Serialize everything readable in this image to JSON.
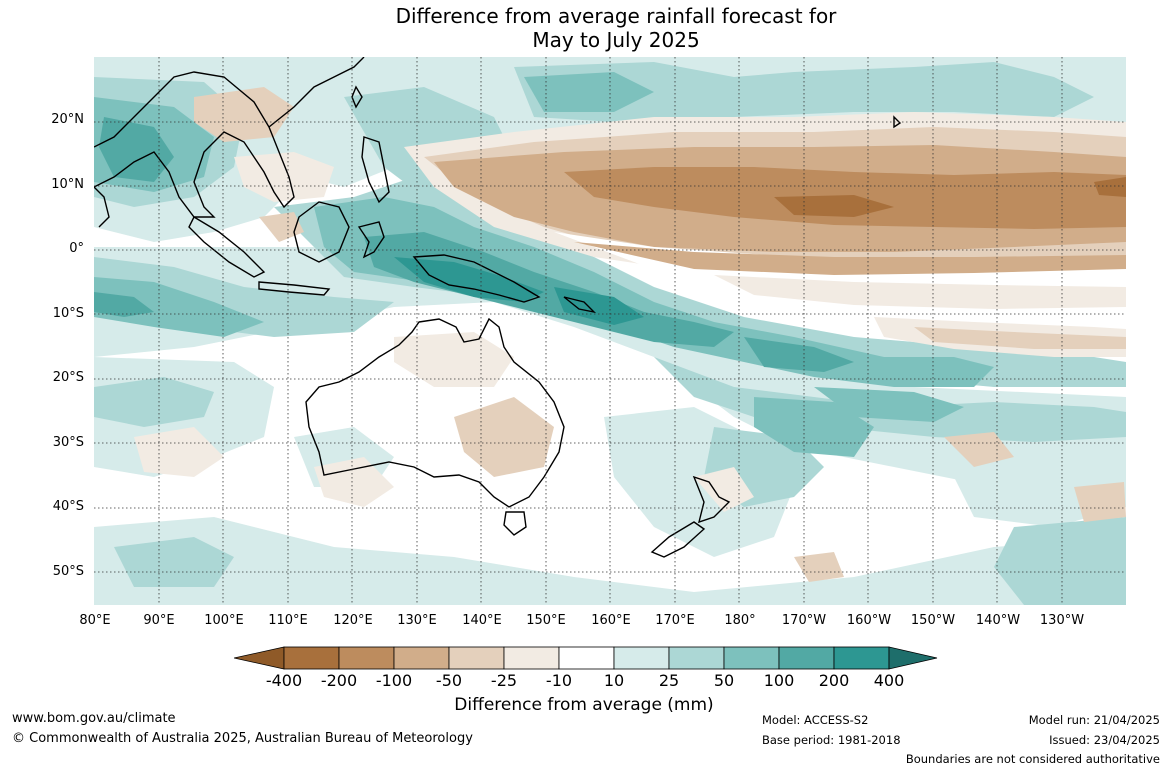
{
  "title": {
    "line1": "Difference from average rainfall forecast for",
    "line2": "May to July 2025"
  },
  "map": {
    "latitude_labels": [
      "20°N",
      "10°N",
      "0°",
      "10°S",
      "20°S",
      "30°S",
      "40°S",
      "50°S"
    ],
    "longitude_labels": [
      "80°E",
      "90°E",
      "100°E",
      "110°E",
      "120°E",
      "130°E",
      "140°E",
      "150°E",
      "160°E",
      "170°E",
      "180°",
      "170°W",
      "160°W",
      "150°W",
      "140°W",
      "130°W"
    ],
    "region": "Indo-Pacific: Indian Ocean, Maritime Continent, Australia, New Zealand, western and central Pacific",
    "features": [
      "Strong drier-than-average band across tropical North Pacific near 5°N–15°N (160°E to 130°W)",
      "Drier band near equator from 160°E eastward",
      "Wetter-than-average over Maritime Continent, Papua New Guinea and South Pacific Convergence Zone",
      "Wetter-than-average over eastern Indian Ocean and Bay of Bengal",
      "Mostly near-average over Australia with small drier patches in the southeast"
    ]
  },
  "legend": {
    "title": "Difference from average (mm)",
    "labels": [
      "-400",
      "-200",
      "-100",
      "-50",
      "-25",
      "-10",
      "10",
      "25",
      "50",
      "100",
      "200",
      "400"
    ],
    "colors": {
      "below_min": "#8f5a28",
      "bins": [
        "#a8703c",
        "#bd8c5e",
        "#d1ad8a",
        "#e4d0bc",
        "#f2ebe3",
        "#ffffff",
        "#d6ebea",
        "#acd7d5",
        "#7dc1bd",
        "#52a9a4",
        "#2d9792"
      ],
      "above_max": "#1e6e6b"
    }
  },
  "footer": {
    "url": "www.bom.gov.au/climate",
    "copyright": "© Commonwealth of Australia 2025, Australian Bureau of Meteorology",
    "model": "Model: ACCESS-S2",
    "base_period": "Base period: 1981-2018",
    "model_run": "Model run: 21/04/2025",
    "issued": "Issued: 23/04/2025",
    "disclaimer": "Boundaries are not considered authoritative"
  }
}
